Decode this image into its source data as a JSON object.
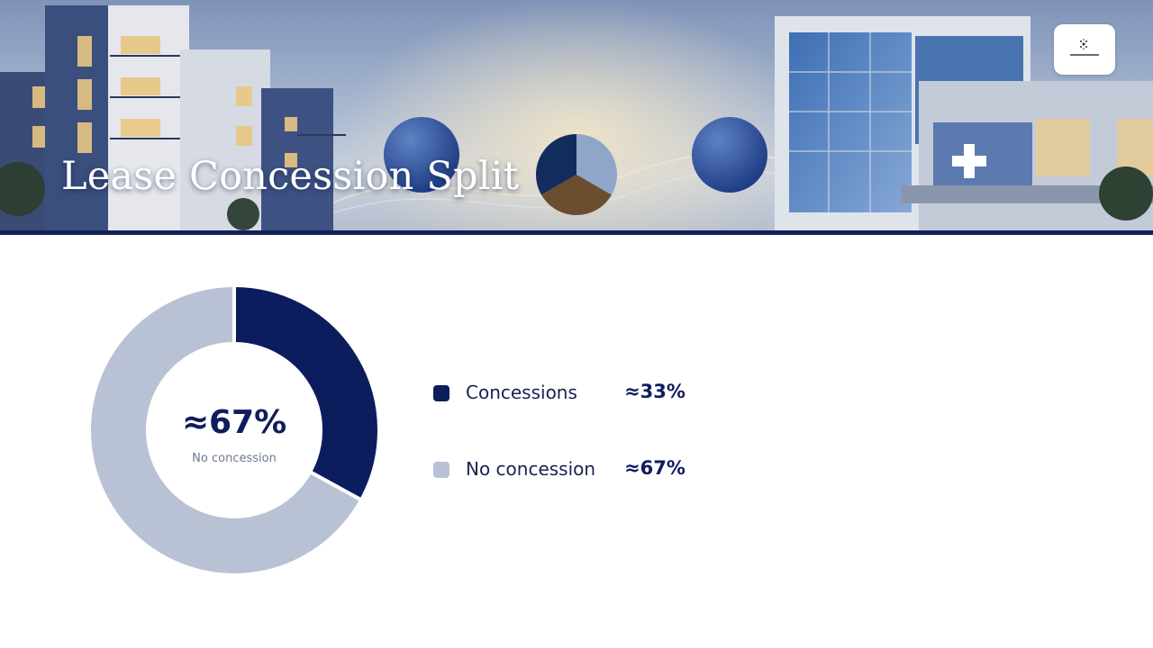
{
  "slide": {
    "title": "Lease Concession Split"
  },
  "colors": {
    "concessions": "#0c1d5e",
    "no_concession": "#b9c1d4",
    "header_rule": "#13205a"
  },
  "icons": {
    "header": "city-buildings-illustration",
    "logo": "company-logo"
  },
  "chart_data": {
    "type": "pie",
    "donut": true,
    "categories": [
      "Concessions",
      "No concession"
    ],
    "values": [
      33,
      67
    ],
    "value_labels": [
      "≈33%",
      "≈67%"
    ],
    "center_value": "≈67%",
    "center_label": "No concession",
    "legend_position": "right"
  }
}
